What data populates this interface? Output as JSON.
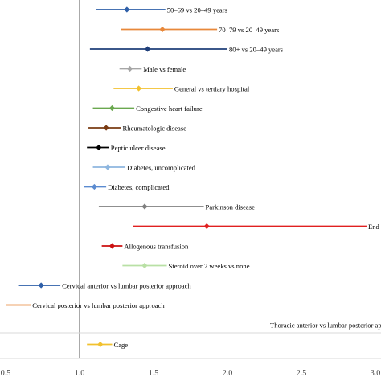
{
  "chart_data": {
    "type": "forest",
    "title": "",
    "xlabel": "",
    "ylabel": "",
    "xlim": [
      0.5,
      3.0
    ],
    "reference_line": 1.0,
    "x_ticks": [
      {
        "value": 0.5,
        "label": "0.5"
      },
      {
        "value": 1.0,
        "label": "1.0"
      },
      {
        "value": 1.5,
        "label": "1.5"
      },
      {
        "value": 2.0,
        "label": "2.0"
      },
      {
        "value": 2.5,
        "label": "2.5"
      },
      {
        "value": 3.0,
        "label": "3.0"
      }
    ],
    "series": [
      {
        "label": "50–69 vs 20–49 years",
        "estimate": 1.32,
        "lower": 1.11,
        "upper": 1.58,
        "color": "#2e5fa8"
      },
      {
        "label": "70–79 vs 20–49 years",
        "estimate": 1.56,
        "lower": 1.28,
        "upper": 1.93,
        "color": "#e8883a"
      },
      {
        "label": "80+ vs 20–49 years",
        "estimate": 1.46,
        "lower": 1.07,
        "upper": 2.0,
        "color": "#1f3f7a"
      },
      {
        "label": "Male vs female",
        "estimate": 1.34,
        "lower": 1.27,
        "upper": 1.42,
        "color": "#a6a6a6"
      },
      {
        "label": "General vs tertiary hospital",
        "estimate": 1.4,
        "lower": 1.23,
        "upper": 1.63,
        "color": "#f2c12e"
      },
      {
        "label": "Congestive heart failure",
        "estimate": 1.22,
        "lower": 1.09,
        "upper": 1.37,
        "color": "#6aa84f"
      },
      {
        "label": "Rheumatologic disease",
        "estimate": 1.18,
        "lower": 1.06,
        "upper": 1.28,
        "color": "#7a3b12"
      },
      {
        "label": "Peptic ulcer disease",
        "estimate": 1.13,
        "lower": 1.05,
        "upper": 1.2,
        "color": "#000000"
      },
      {
        "label": "Diabetes, uncomplicated",
        "estimate": 1.19,
        "lower": 1.09,
        "upper": 1.31,
        "color": "#8eb6df"
      },
      {
        "label": "Diabetes, complicated",
        "estimate": 1.1,
        "lower": 1.03,
        "upper": 1.18,
        "color": "#5b8bd0"
      },
      {
        "label": "Parkinson disease",
        "estimate": 1.44,
        "lower": 1.13,
        "upper": 1.84,
        "color": "#7f7f7f"
      },
      {
        "label": "End st",
        "estimate": 1.86,
        "lower": 1.36,
        "upper": 2.94,
        "color": "#e02020"
      },
      {
        "label": "Allogenous transfusion",
        "estimate": 1.22,
        "lower": 1.15,
        "upper": 1.29,
        "color": "#cc1111"
      },
      {
        "label": "Steroid over 2 weeks vs none",
        "estimate": 1.44,
        "lower": 1.29,
        "upper": 1.59,
        "color": "#b9e0a5"
      },
      {
        "label": "Cervical anterior vs lumbar posterior approach",
        "estimate": 0.74,
        "lower": 0.59,
        "upper": 0.87,
        "color": "#2e5fa8"
      },
      {
        "label": "Cervical posterior vs lumbar posterior approach",
        "estimate": null,
        "lower": 0.5,
        "upper": 0.67,
        "color": "#e8883a"
      },
      {
        "label": "Thoracic anterior vs lumbar posterior approach",
        "estimate": null,
        "lower": null,
        "upper": null,
        "color": "#999999"
      },
      {
        "label": "Cage",
        "estimate": 1.14,
        "lower": 1.05,
        "upper": 1.22,
        "color": "#f2c12e"
      }
    ]
  }
}
